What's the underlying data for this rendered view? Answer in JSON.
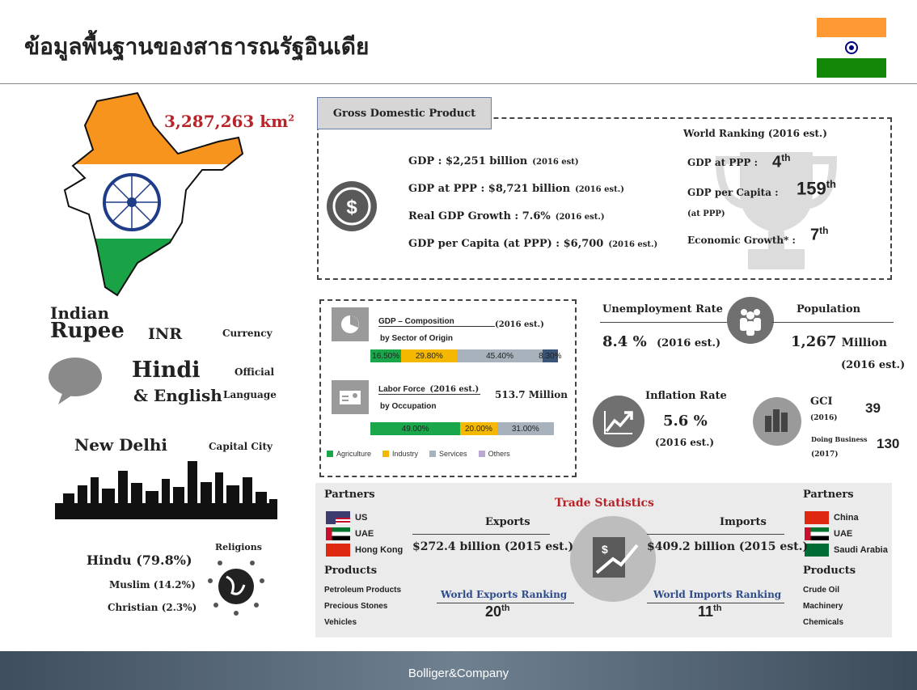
{
  "header": {
    "title": "ข้อมูลพื้นฐานของสาธารณรัฐอินเดีย"
  },
  "area": {
    "value": "3,287,263 km",
    "sup": "2"
  },
  "currency": {
    "name_1": "Indian",
    "name_2": "Rupee",
    "code": "INR",
    "label": "Currency"
  },
  "language": {
    "line_1": "Hindi",
    "line_2": "& English",
    "label_1": "Official",
    "label_2": "Language"
  },
  "capital": {
    "name": "New Delhi",
    "label": "Capital City"
  },
  "religions": {
    "label": "Religions",
    "items": [
      "Hindu (79.8%)",
      "Muslim (14.2%)",
      "Christian (2.3%)"
    ]
  },
  "gdp": {
    "title": "Gross Domestic Product",
    "lines": [
      {
        "label": "GDP : $2,251 billion",
        "note": "(2016 est)"
      },
      {
        "label": "GDP at PPP : $8,721 billion",
        "note": "(2016 est.)"
      },
      {
        "label": "Real GDP Growth : 7.6%",
        "note": "(2016 est.)"
      },
      {
        "label": "GDP per Capita (at PPP) : $6,700",
        "note": "(2016 est.)"
      }
    ],
    "ranking": {
      "title": "World Ranking (2016 est.)",
      "items": [
        {
          "label": "GDP at PPP :",
          "rank": "4",
          "suffix": "th"
        },
        {
          "label": "GDP per Capita :",
          "sub": "(at PPP)",
          "rank": "159",
          "suffix": "th"
        },
        {
          "label": "Economic Growth* :",
          "rank": "7",
          "suffix": "th"
        }
      ]
    }
  },
  "composition": {
    "title": "GDP – Composition",
    "subtitle": "by Sector of Origin",
    "note": "(2016 est.)",
    "values": [
      16.5,
      29.8,
      45.4,
      8.3
    ],
    "value_labels": [
      "16.50%",
      "29.80%",
      "45.40%",
      "8.30%"
    ],
    "colors": [
      "#1aa64a",
      "#f5b800",
      "#a7b2bd",
      "#3a5478"
    ]
  },
  "labor": {
    "title": "Labor Force",
    "note": "(2016 est.)",
    "subtitle": "by Occupation",
    "total": "513.7 Million",
    "values": [
      49,
      20,
      31
    ],
    "value_labels": [
      "49.00%",
      "20.00%",
      "31.00%"
    ],
    "colors": [
      "#1aa64a",
      "#f5b800",
      "#a7b2bd"
    ]
  },
  "legend": [
    {
      "name": "Agriculture",
      "color": "#1aa64a"
    },
    {
      "name": "Industry",
      "color": "#f5b800"
    },
    {
      "name": "Services",
      "color": "#a7b2bd"
    },
    {
      "name": "Others",
      "color": "#b9a8d0"
    }
  ],
  "unemployment": {
    "label": "Unemployment Rate",
    "value": "8.4 %",
    "note": "(2016 est.)"
  },
  "population": {
    "label": "Population",
    "value": "1,267",
    "unit": "Million",
    "note": "(2016 est.)"
  },
  "inflation": {
    "label": "Inflation Rate",
    "value": "5.6 %",
    "note": "(2016 est.)"
  },
  "gci": {
    "label": "GCI",
    "year": "(2016)",
    "value": "39",
    "doing_label": "Doing Business",
    "doing_year": "(2017)",
    "doing_value": "130"
  },
  "trade": {
    "title": "Trade Statistics",
    "exports": {
      "partners_label": "Partners",
      "partners": [
        "US",
        "UAE",
        "Hong Kong"
      ],
      "title": "Exports",
      "value": "$272.4 billion (2015 est.)",
      "ranking_label": "World Exports Ranking",
      "rank": "20",
      "suffix": "th",
      "products_label": "Products",
      "products": [
        "Petroleum Products",
        "Precious Stones",
        "Vehicles"
      ]
    },
    "imports": {
      "partners_label": "Partners",
      "partners": [
        "China",
        "UAE",
        "Saudi Arabia"
      ],
      "title": "Imports",
      "value": "$409.2 billion (2015 est.)",
      "ranking_label": "World Imports Ranking",
      "rank": "11",
      "suffix": "th",
      "products_label": "Products",
      "products": [
        "Crude Oil",
        "Machinery",
        "Chemicals"
      ]
    }
  },
  "footer": {
    "brand": "Bolliger&Company"
  }
}
